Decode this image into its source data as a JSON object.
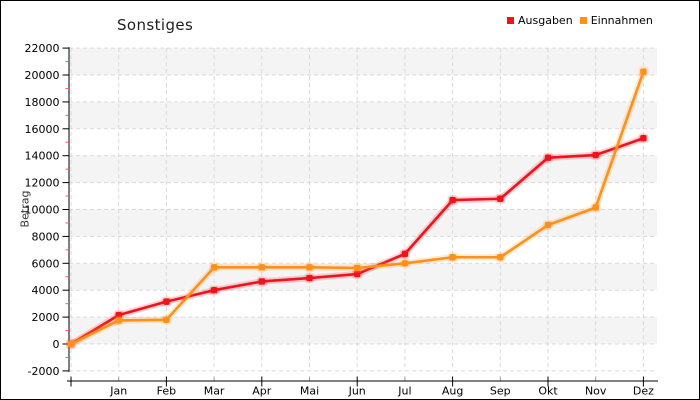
{
  "chart_data": {
    "type": "line",
    "title": "Sonstiges",
    "ylabel": "Betrag",
    "categories": [
      "",
      "Jan",
      "Feb",
      "Mar",
      "Apr",
      "Mai",
      "Jun",
      "Jul",
      "Aug",
      "Sep",
      "Okt",
      "Nov",
      "Dez"
    ],
    "series": [
      {
        "name": "Ausgaben",
        "color": "#f2121c",
        "values": [
          0,
          2150,
          3150,
          4000,
          4650,
          4900,
          5200,
          6700,
          10700,
          10800,
          13850,
          14050,
          15300
        ]
      },
      {
        "name": "Einnahmen",
        "color": "#ff9019",
        "values": [
          0,
          1750,
          1800,
          5700,
          5700,
          5700,
          5650,
          6000,
          6450,
          6450,
          8850,
          10150,
          20250
        ]
      }
    ],
    "ylim": [
      -2000,
      22000
    ],
    "ytick_step": 2000,
    "legend_position": "top-right",
    "grid": "dashed",
    "gridline_color": "#d9d9d9",
    "band_colors": [
      "#f4f4f4",
      "#ffffff"
    ],
    "axis_color": "#000000",
    "minor_tick_color": "#ff5a50",
    "x_minor_tick_color": "#9b9b9b"
  }
}
